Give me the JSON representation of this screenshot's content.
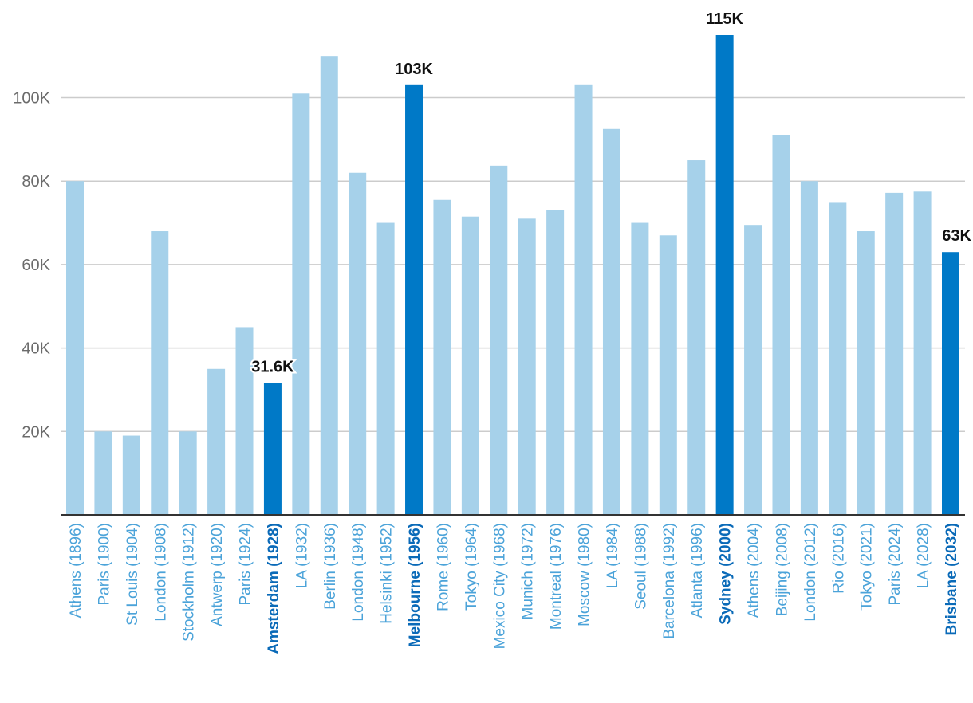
{
  "chart_data": {
    "type": "bar",
    "title": "",
    "xlabel": "",
    "ylabel": "",
    "ylim": [
      0,
      115000
    ],
    "yticks": [
      20000,
      40000,
      60000,
      80000,
      100000
    ],
    "ytick_labels": [
      "20K",
      "40K",
      "60K",
      "80K",
      "100K"
    ],
    "grid": true,
    "categories": [
      "Athens (1896)",
      "Paris (1900)",
      "St Louis (1904)",
      "London (1908)",
      "Stockholm (1912)",
      "Antwerp (1920)",
      "Paris (1924)",
      "Amsterdam (1928)",
      "LA (1932)",
      "Berlin (1936)",
      "London (1948)",
      "Helsinki (1952)",
      "Melbourne (1956)",
      "Rome (1960)",
      "Tokyo (1964)",
      "Mexico City (1968)",
      "Munich (1972)",
      "Montreal (1976)",
      "Moscow (1980)",
      "LA (1984)",
      "Seoul (1988)",
      "Barcelona (1992)",
      "Atlanta (1996)",
      "Sydney (2000)",
      "Athens (2004)",
      "Beijing (2008)",
      "London (2012)",
      "Rio (2016)",
      "Tokyo (2021)",
      "Paris (2024)",
      "LA (2028)",
      "Brisbane (2032)"
    ],
    "values": [
      80000,
      20000,
      19000,
      68000,
      20000,
      35000,
      45000,
      31600,
      101000,
      110000,
      82000,
      70000,
      103000,
      75500,
      71500,
      83700,
      71000,
      73000,
      103000,
      92500,
      70000,
      67000,
      85000,
      115000,
      69500,
      91000,
      80000,
      74800,
      68000,
      77200,
      77500,
      63000
    ],
    "highlighted": [
      7,
      12,
      23,
      31
    ],
    "data_labels": [
      {
        "index": 7,
        "text": "31.6K"
      },
      {
        "index": 12,
        "text": "103K"
      },
      {
        "index": 23,
        "text": "115K"
      },
      {
        "index": 31,
        "text": "63K"
      }
    ],
    "colors": {
      "bar": "#a6d1ea",
      "highlight": "#0079c7",
      "label": "#4ba3d9",
      "label_highlight": "#0a6ab8",
      "grid": "#cccccc",
      "axis": "#333333"
    }
  }
}
